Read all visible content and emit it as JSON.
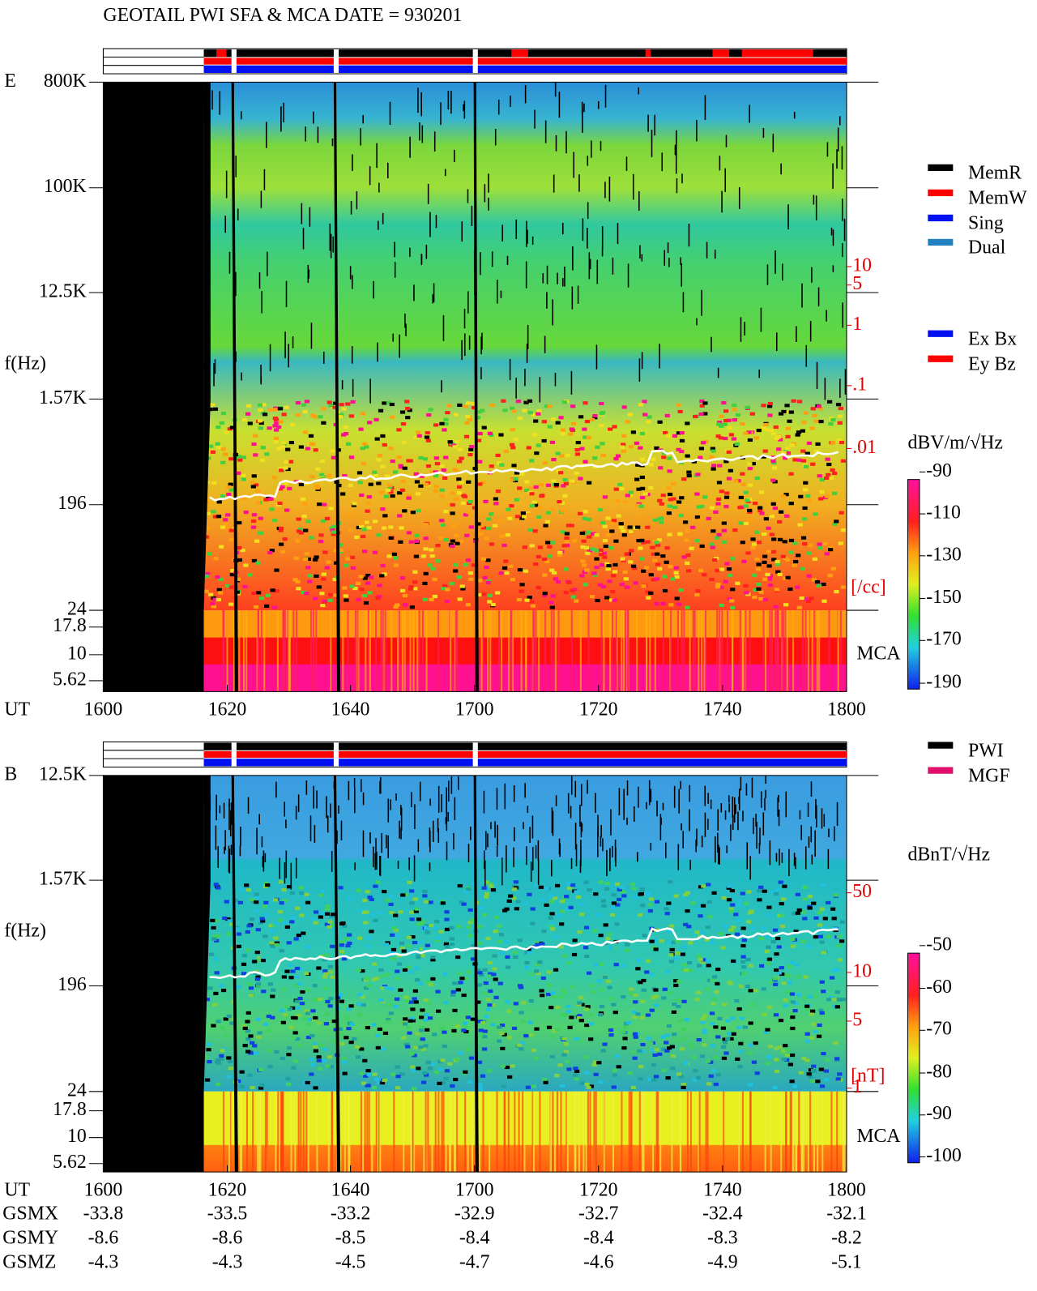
{
  "title": "GEOTAIL  PWI SFA & MCA   DATE = 930201",
  "panels": [
    {
      "label": "E",
      "y_axis_label": "f(Hz)",
      "y_ticks": [
        "800K",
        "100K",
        "12.5K",
        "1.57K",
        "196",
        "24",
        "17.8",
        "10",
        "5.62"
      ],
      "x_axis_label": "UT",
      "x_ticks": [
        "1600",
        "1620",
        "1640",
        "1700",
        "1720",
        "1740",
        "1800"
      ],
      "density_ticks": [
        "10",
        "5",
        "1",
        ".1",
        ".01"
      ],
      "density_unit": "[/cc]",
      "mca_label": "MCA",
      "colorbar": {
        "unit": "dBV/m/√Hz",
        "ticks": [
          "-90",
          "-110",
          "-130",
          "-150",
          "-170",
          "-190"
        ]
      },
      "legend_groups": [
        [
          "MemR",
          "MemW",
          "Sing",
          "Dual"
        ],
        [
          "Ex Bx",
          "Ey Bz"
        ]
      ]
    },
    {
      "label": "B",
      "y_axis_label": "f(Hz)",
      "y_ticks": [
        "12.5K",
        "1.57K",
        "196",
        "24",
        "17.8",
        "10",
        "5.62"
      ],
      "x_axis_label": "UT",
      "x_ticks": [
        "1600",
        "1620",
        "1640",
        "1700",
        "1720",
        "1740",
        "1800"
      ],
      "density_ticks": [
        "50",
        "10",
        "5",
        "1"
      ],
      "density_unit": "[nT]",
      "mca_label": "MCA",
      "colorbar": {
        "unit": "dBnT/√Hz",
        "ticks": [
          "-50",
          "-60",
          "-70",
          "-80",
          "-90",
          "-100"
        ]
      },
      "legend_groups": [
        [
          "PWI",
          "MGF"
        ]
      ]
    }
  ],
  "orbit": {
    "rows": [
      {
        "label": "GSMX",
        "values": [
          "-33.8",
          "-33.5",
          "-33.2",
          "-32.9",
          "-32.7",
          "-32.4",
          "-32.1"
        ]
      },
      {
        "label": "GSMY",
        "values": [
          "-8.6",
          "-8.6",
          "-8.5",
          "-8.4",
          "-8.4",
          "-8.3",
          "-8.2"
        ]
      },
      {
        "label": "GSMZ",
        "values": [
          "-4.3",
          "-4.3",
          "-4.5",
          "-4.7",
          "-4.6",
          "-4.9",
          "-5.1"
        ]
      }
    ]
  }
}
